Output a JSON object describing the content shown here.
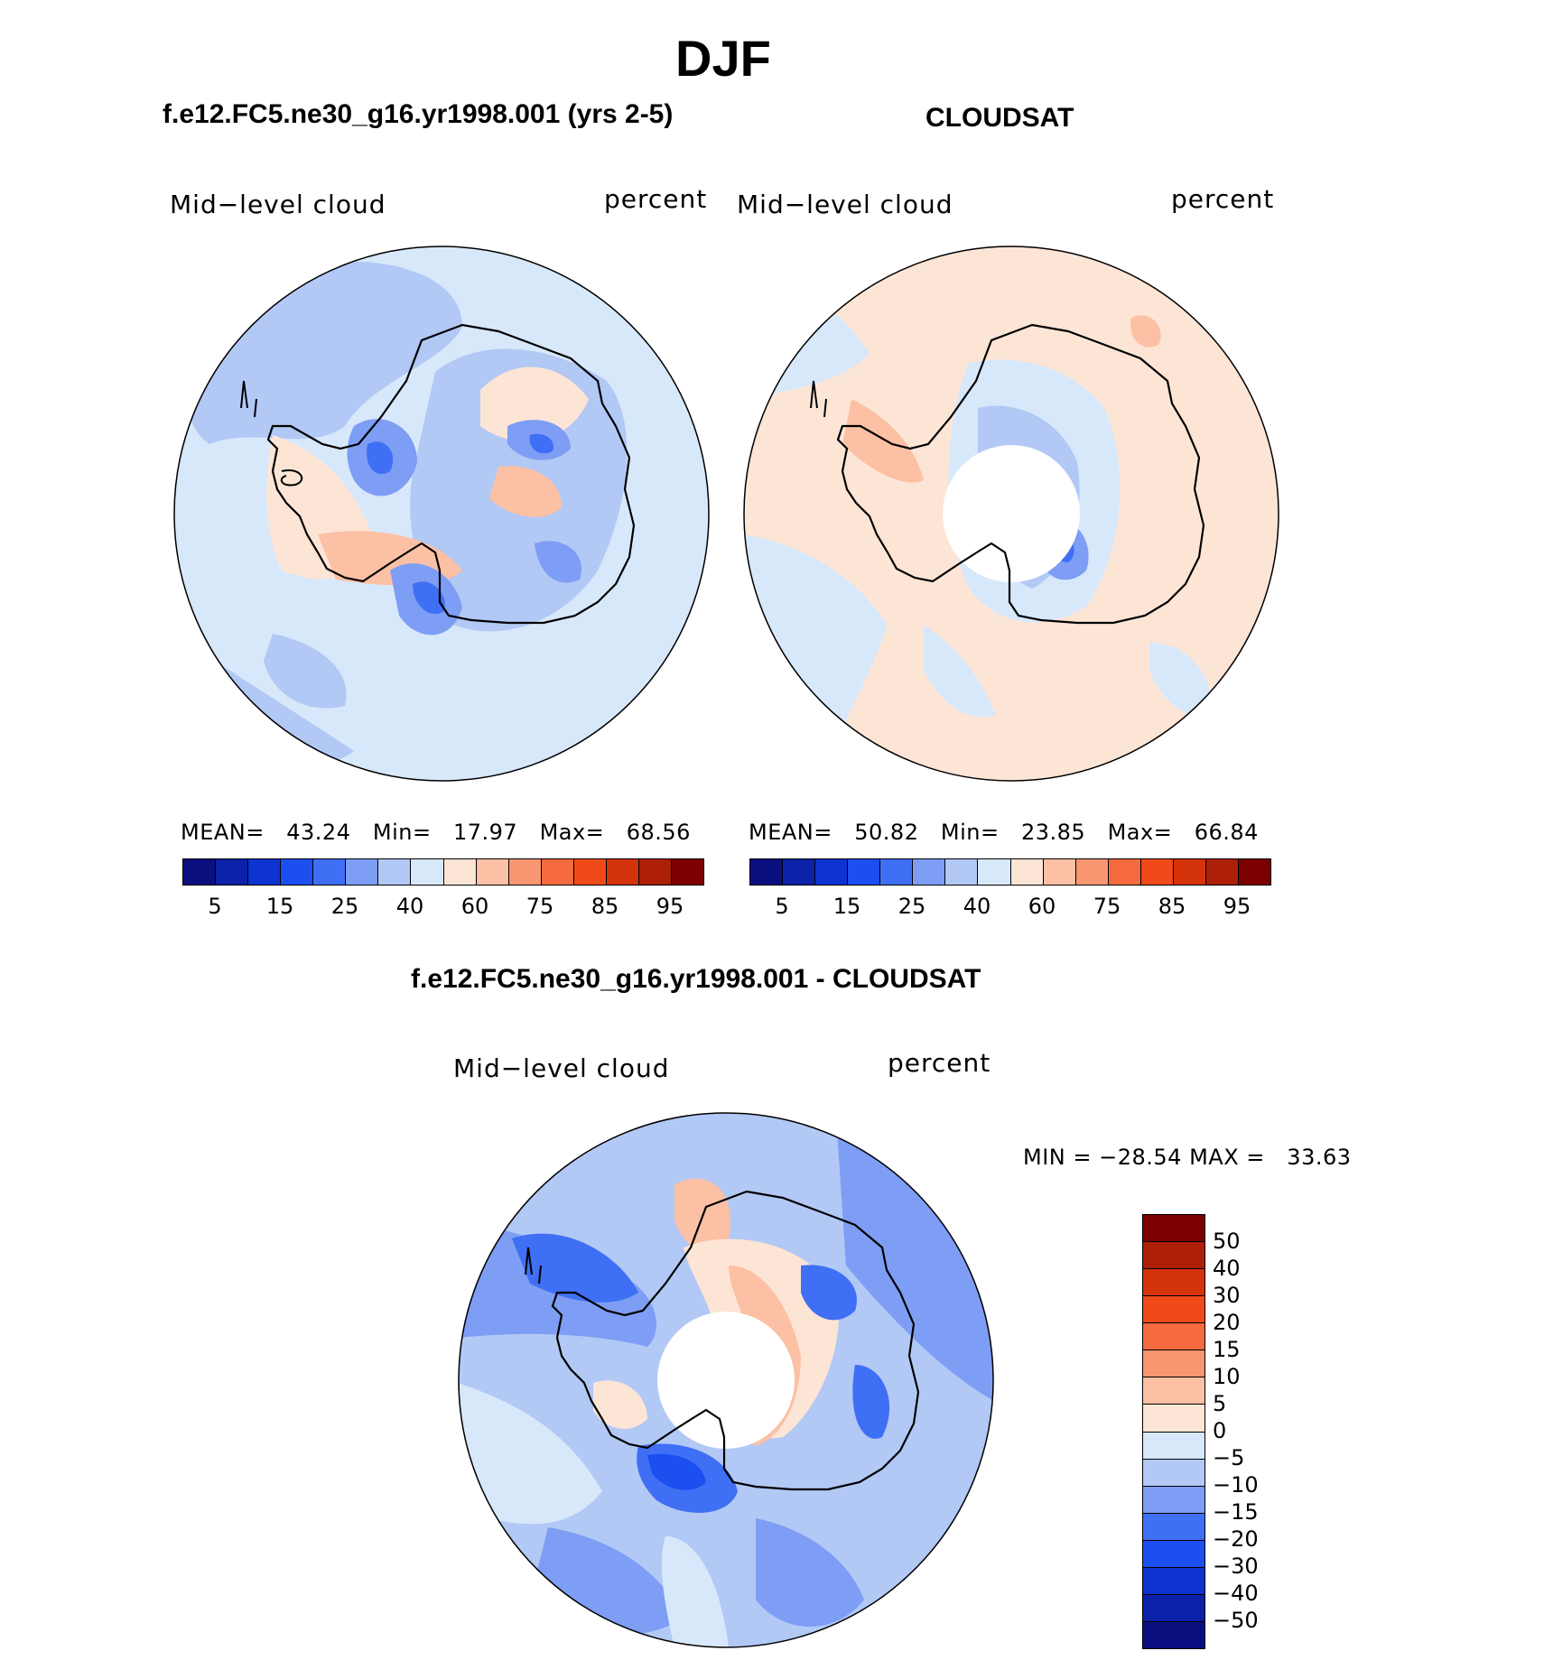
{
  "header": {
    "title": "DJF",
    "left_title": "f.e12.FC5.ne30_g16.yr1998.001 (yrs 2-5)",
    "right_title": "CLOUDSAT",
    "diff_title": "f.e12.FC5.ne30_g16.yr1998.001 - CLOUDSAT"
  },
  "panels": {
    "model": {
      "variable": "Mid−level cloud",
      "units": "percent",
      "mean_label": "MEAN=",
      "mean_value": "43.24",
      "min_label": "Min=",
      "min_value": "17.97",
      "max_label": "Max=",
      "max_value": "68.56"
    },
    "obs": {
      "variable": "Mid−level cloud",
      "units": "percent",
      "mean_label": "MEAN=",
      "mean_value": "50.82",
      "min_label": "Min=",
      "min_value": "23.85",
      "max_label": "Max=",
      "max_value": "66.84"
    },
    "diff": {
      "variable": "Mid−level cloud",
      "units": "percent",
      "min_label": "MIN =",
      "min_value": "−28.54",
      "max_label": "MAX =",
      "max_value": "33.63"
    }
  },
  "colorbars": {
    "abs": {
      "colors": [
        "#0a0f80",
        "#0b21a8",
        "#0d33d0",
        "#1b4ff0",
        "#3f6ff5",
        "#7e9df4",
        "#b2c8f5",
        "#d8e8fb",
        "#fde5d6",
        "#fcc0a4",
        "#f99672",
        "#f56a3e",
        "#f04a1a",
        "#d5330a",
        "#ad1f07",
        "#7d0000"
      ],
      "tick_labels": [
        "5",
        "15",
        "25",
        "40",
        "60",
        "75",
        "85",
        "95"
      ]
    },
    "diff": {
      "colors": [
        "#0a0f80",
        "#0b21a8",
        "#0d33d0",
        "#1b4ff0",
        "#3f6ff5",
        "#7e9df4",
        "#b2c8f5",
        "#d8e8fb",
        "#fde5d6",
        "#fcc0a4",
        "#f99672",
        "#f56a3e",
        "#f04a1a",
        "#d5330a",
        "#ad1f07",
        "#7d0000"
      ],
      "tick_labels": [
        "−50",
        "−40",
        "−30",
        "−20",
        "−15",
        "−10",
        "−5",
        "0",
        "5",
        "10",
        "15",
        "20",
        "30",
        "40",
        "50"
      ]
    }
  }
}
